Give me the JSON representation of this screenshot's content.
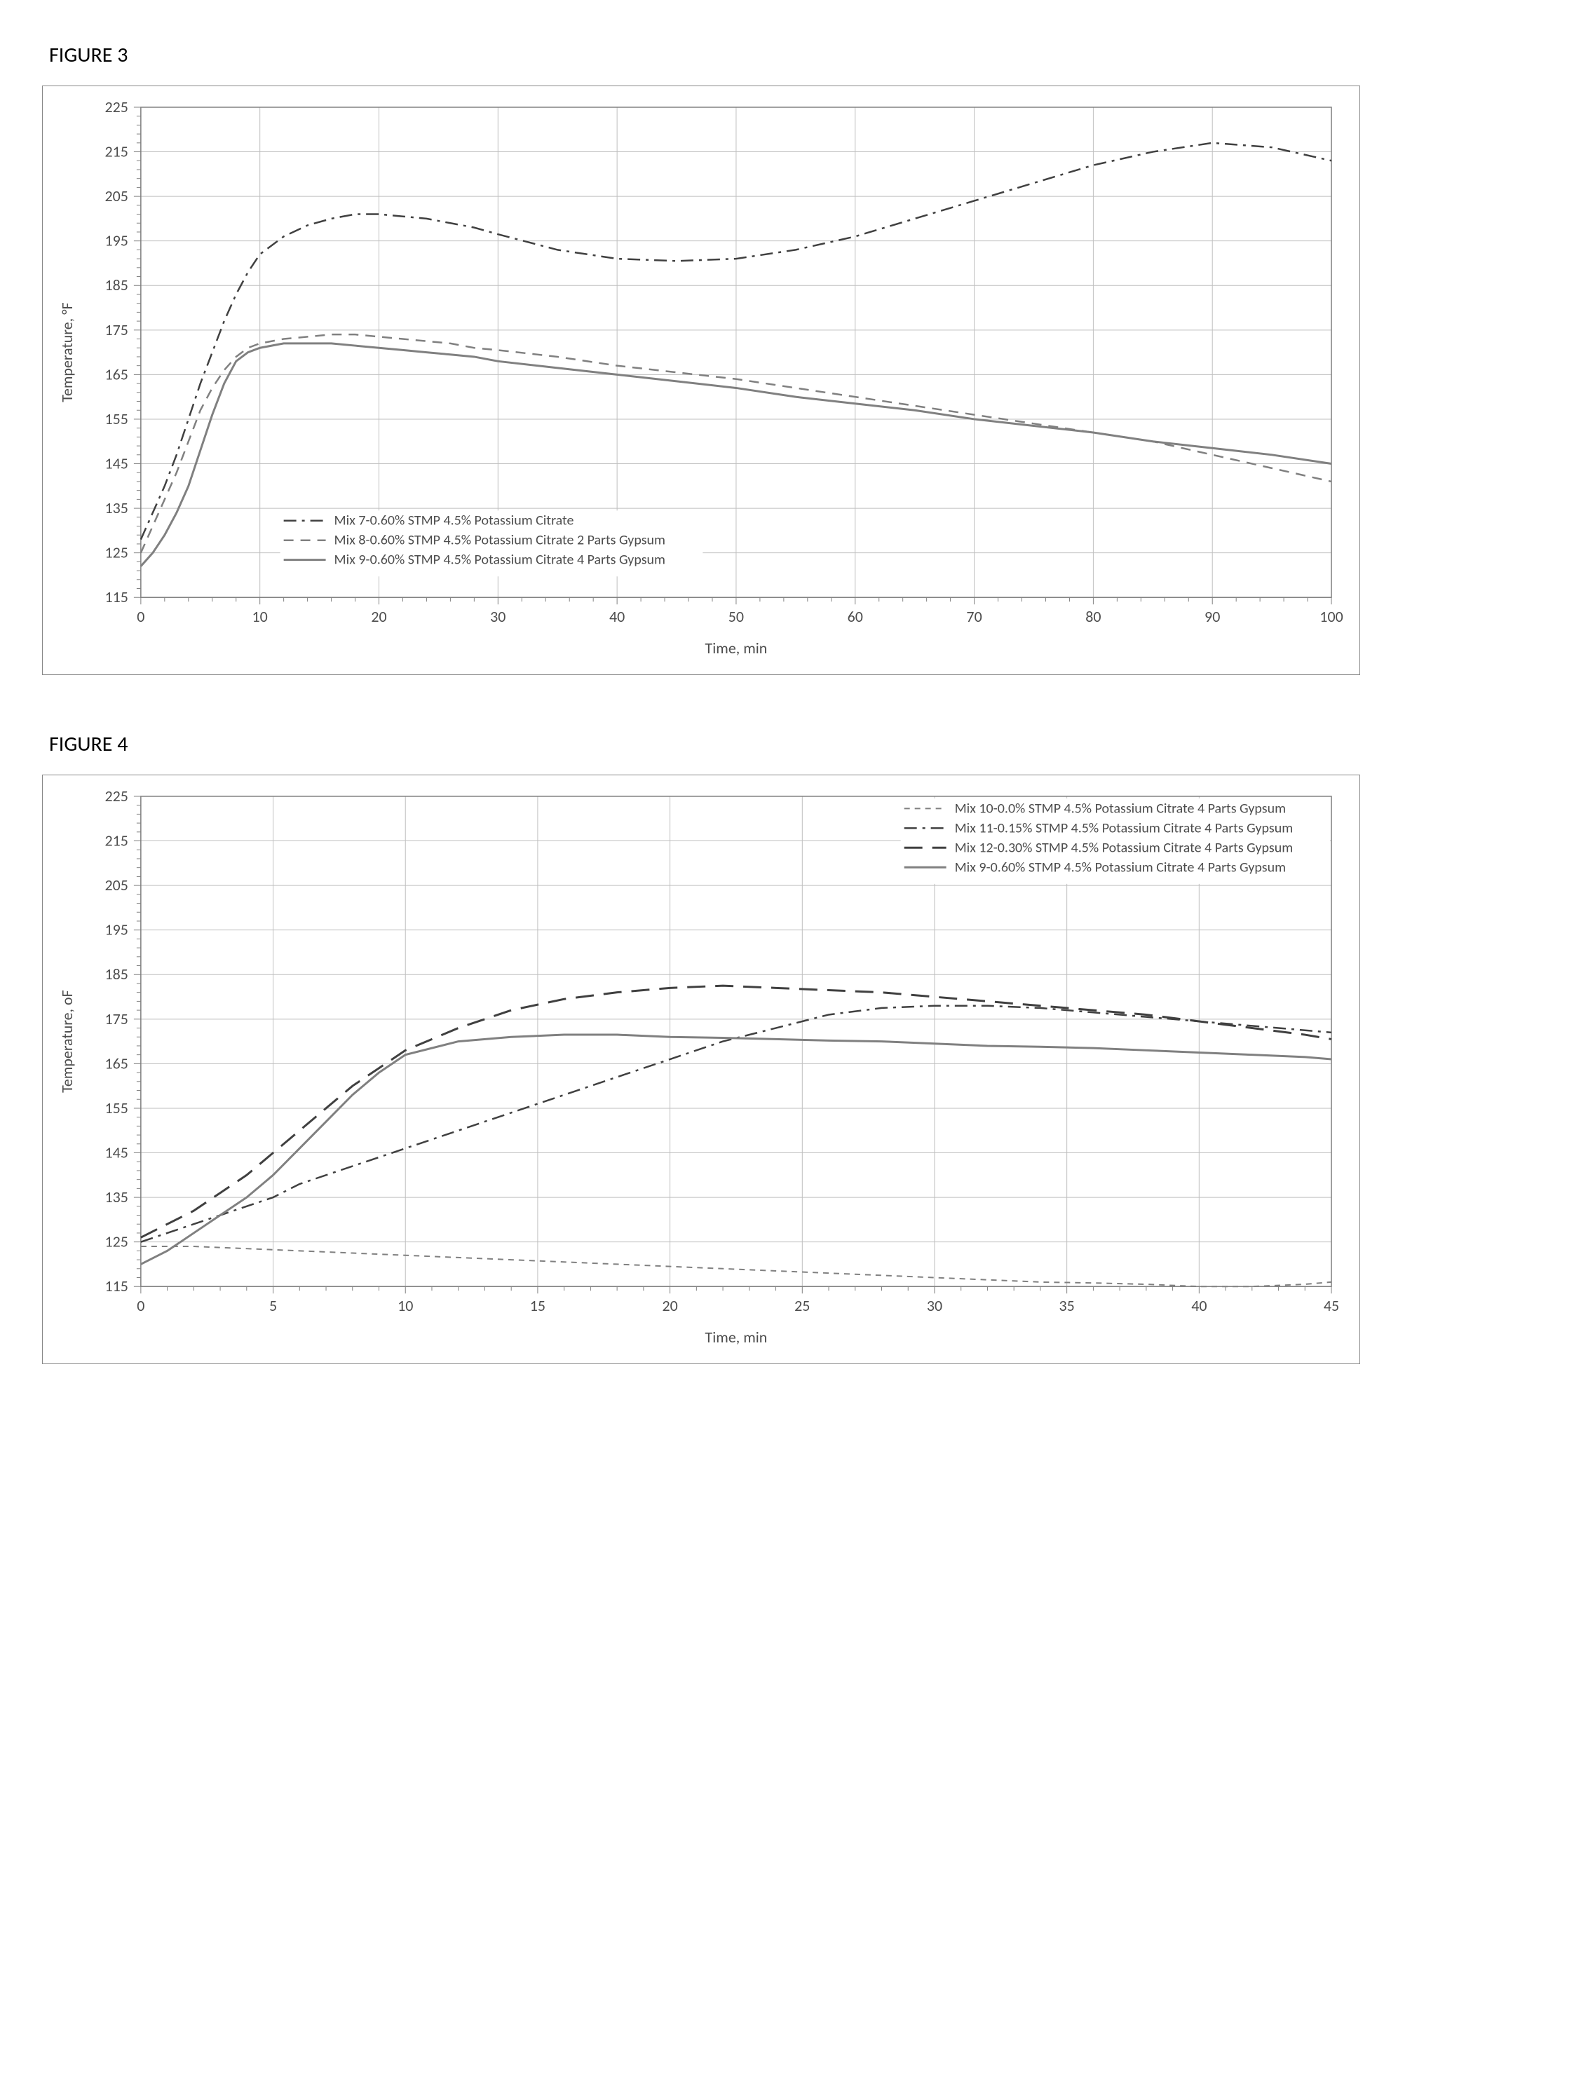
{
  "figure3": {
    "title": "FIGURE 3",
    "chart": {
      "type": "line",
      "xlabel": "Time, min",
      "ylabel": "Temperature, °F",
      "label_fontsize": 22,
      "xlim": [
        0,
        100
      ],
      "ylim": [
        115,
        225
      ],
      "xtick_step": 10,
      "ytick_step": 10,
      "minor_xticks": 5,
      "minor_yticks": 5,
      "background_color": "#ffffff",
      "grid_color": "#bfbfbf",
      "text_color": "#4d4d4d",
      "axis_color": "#808080",
      "legend_position": "inside-lower-left",
      "legend_bg": "#ffffff",
      "legend_border": "none",
      "legend_fontsize": 20,
      "series": [
        {
          "label": "Mix 7-0.60% STMP 4.5% Potassium Citrate",
          "color": "#404040",
          "dash": "dash-dot",
          "width": 2.5,
          "x": [
            0,
            1,
            2,
            3,
            4,
            5,
            6,
            7,
            8,
            9,
            10,
            12,
            14,
            16,
            18,
            20,
            22,
            24,
            26,
            28,
            30,
            35,
            40,
            45,
            50,
            55,
            60,
            65,
            70,
            75,
            80,
            85,
            90,
            95,
            100
          ],
          "y": [
            128,
            134,
            140,
            147,
            155,
            163,
            170,
            177,
            183,
            188,
            192,
            196,
            198.5,
            200,
            201,
            201,
            200.5,
            200,
            199,
            198,
            196.5,
            193,
            191,
            190.5,
            191,
            193,
            196,
            200,
            204,
            208,
            212,
            215,
            217,
            216,
            213
          ]
        },
        {
          "label": "Mix 8-0.60% STMP 4.5% Potassium Citrate 2 Parts Gypsum",
          "color": "#808080",
          "dash": "dashed",
          "width": 2.5,
          "x": [
            0,
            1,
            2,
            3,
            4,
            5,
            6,
            7,
            8,
            9,
            10,
            12,
            14,
            16,
            18,
            20,
            22,
            24,
            26,
            28,
            30,
            35,
            40,
            45,
            50,
            55,
            60,
            65,
            70,
            75,
            80,
            85,
            90,
            95,
            100
          ],
          "y": [
            125,
            131,
            137,
            143,
            150,
            157,
            162,
            166,
            169,
            171,
            172,
            173,
            173.5,
            174,
            174,
            173.5,
            173,
            172.5,
            172,
            171,
            170.5,
            169,
            167,
            165.5,
            164,
            162,
            160,
            158,
            156,
            154,
            152,
            150,
            147,
            144,
            141
          ]
        },
        {
          "label": "Mix 9-0.60% STMP 4.5% Potassium Citrate 4 Parts Gypsum",
          "color": "#808080",
          "dash": "solid",
          "width": 3,
          "x": [
            0,
            1,
            2,
            3,
            4,
            5,
            6,
            7,
            8,
            9,
            10,
            12,
            14,
            16,
            18,
            20,
            22,
            24,
            26,
            28,
            30,
            35,
            40,
            45,
            50,
            55,
            60,
            65,
            70,
            75,
            80,
            85,
            90,
            95,
            100
          ],
          "y": [
            122,
            125,
            129,
            134,
            140,
            148,
            156,
            163,
            168,
            170,
            171,
            172,
            172,
            172,
            171.5,
            171,
            170.5,
            170,
            169.5,
            169,
            168,
            166.5,
            165,
            163.5,
            162,
            160,
            158.5,
            157,
            155,
            153.5,
            152,
            150,
            148.5,
            147,
            145
          ]
        }
      ]
    }
  },
  "figure4": {
    "title": "FIGURE 4",
    "chart": {
      "type": "line",
      "xlabel": "Time, min",
      "ylabel": "Temperature, oF",
      "label_fontsize": 22,
      "xlim": [
        0,
        45
      ],
      "ylim": [
        115,
        225
      ],
      "xtick_step": 5,
      "ytick_step": 10,
      "minor_xticks": 5,
      "minor_yticks": 5,
      "background_color": "#ffffff",
      "grid_color": "#bfbfbf",
      "text_color": "#4d4d4d",
      "axis_color": "#808080",
      "legend_position": "inside-upper-right",
      "legend_bg": "#ffffff",
      "legend_border": "none",
      "legend_fontsize": 20,
      "series": [
        {
          "label": "Mix 10-0.0% STMP 4.5% Potassium Citrate 4 Parts Gypsum",
          "color": "#808080",
          "dash": "short-dash",
          "width": 2,
          "x": [
            0,
            2,
            4,
            6,
            8,
            10,
            12,
            14,
            16,
            18,
            20,
            22,
            24,
            26,
            28,
            30,
            32,
            34,
            36,
            38,
            40,
            42,
            44,
            45
          ],
          "y": [
            124,
            124,
            123.5,
            123,
            122.5,
            122,
            121.5,
            121,
            120.5,
            120,
            119.5,
            119,
            118.5,
            118,
            117.5,
            117,
            116.5,
            116,
            115.8,
            115.5,
            115,
            115,
            115.5,
            116
          ]
        },
        {
          "label": "Mix 11-0.15% STMP 4.5% Potassium Citrate 4 Parts Gypsum",
          "color": "#404040",
          "dash": "dash-dot",
          "width": 2.5,
          "x": [
            0,
            1,
            2,
            3,
            4,
            5,
            6,
            7,
            8,
            9,
            10,
            12,
            14,
            16,
            18,
            20,
            22,
            24,
            26,
            28,
            30,
            32,
            34,
            36,
            38,
            40,
            42,
            44,
            45
          ],
          "y": [
            125,
            127,
            129,
            131,
            133,
            135,
            138,
            140,
            142,
            144,
            146,
            150,
            154,
            158,
            162,
            166,
            170,
            173,
            176,
            177.5,
            178,
            178,
            177.5,
            176.5,
            175.5,
            174.5,
            173.5,
            172.5,
            172
          ]
        },
        {
          "label": "Mix 12-0.30% STMP 4.5% Potassium Citrate 4 Parts Gypsum",
          "color": "#404040",
          "dash": "long-dash",
          "width": 3,
          "x": [
            0,
            1,
            2,
            3,
            4,
            5,
            6,
            7,
            8,
            9,
            10,
            12,
            14,
            16,
            18,
            20,
            22,
            24,
            26,
            28,
            30,
            32,
            34,
            36,
            38,
            40,
            42,
            44,
            45
          ],
          "y": [
            126,
            129,
            132,
            136,
            140,
            145,
            150,
            155,
            160,
            164,
            168,
            173,
            177,
            179.5,
            181,
            182,
            182.5,
            182,
            181.5,
            181,
            180,
            179,
            178,
            177,
            176,
            174.5,
            173,
            171.5,
            170.5
          ]
        },
        {
          "label": "Mix 9-0.60% STMP 4.5% Potassium Citrate 4 Parts Gypsum",
          "color": "#808080",
          "dash": "solid",
          "width": 3,
          "x": [
            0,
            1,
            2,
            3,
            4,
            5,
            6,
            7,
            8,
            9,
            10,
            12,
            14,
            16,
            18,
            20,
            22,
            24,
            26,
            28,
            30,
            32,
            34,
            36,
            38,
            40,
            42,
            44,
            45
          ],
          "y": [
            120,
            123,
            127,
            131,
            135,
            140,
            146,
            152,
            158,
            163,
            167,
            170,
            171,
            171.5,
            171.5,
            171,
            170.8,
            170.5,
            170.2,
            170,
            169.5,
            169,
            168.8,
            168.5,
            168,
            167.5,
            167,
            166.5,
            166
          ]
        }
      ]
    }
  }
}
